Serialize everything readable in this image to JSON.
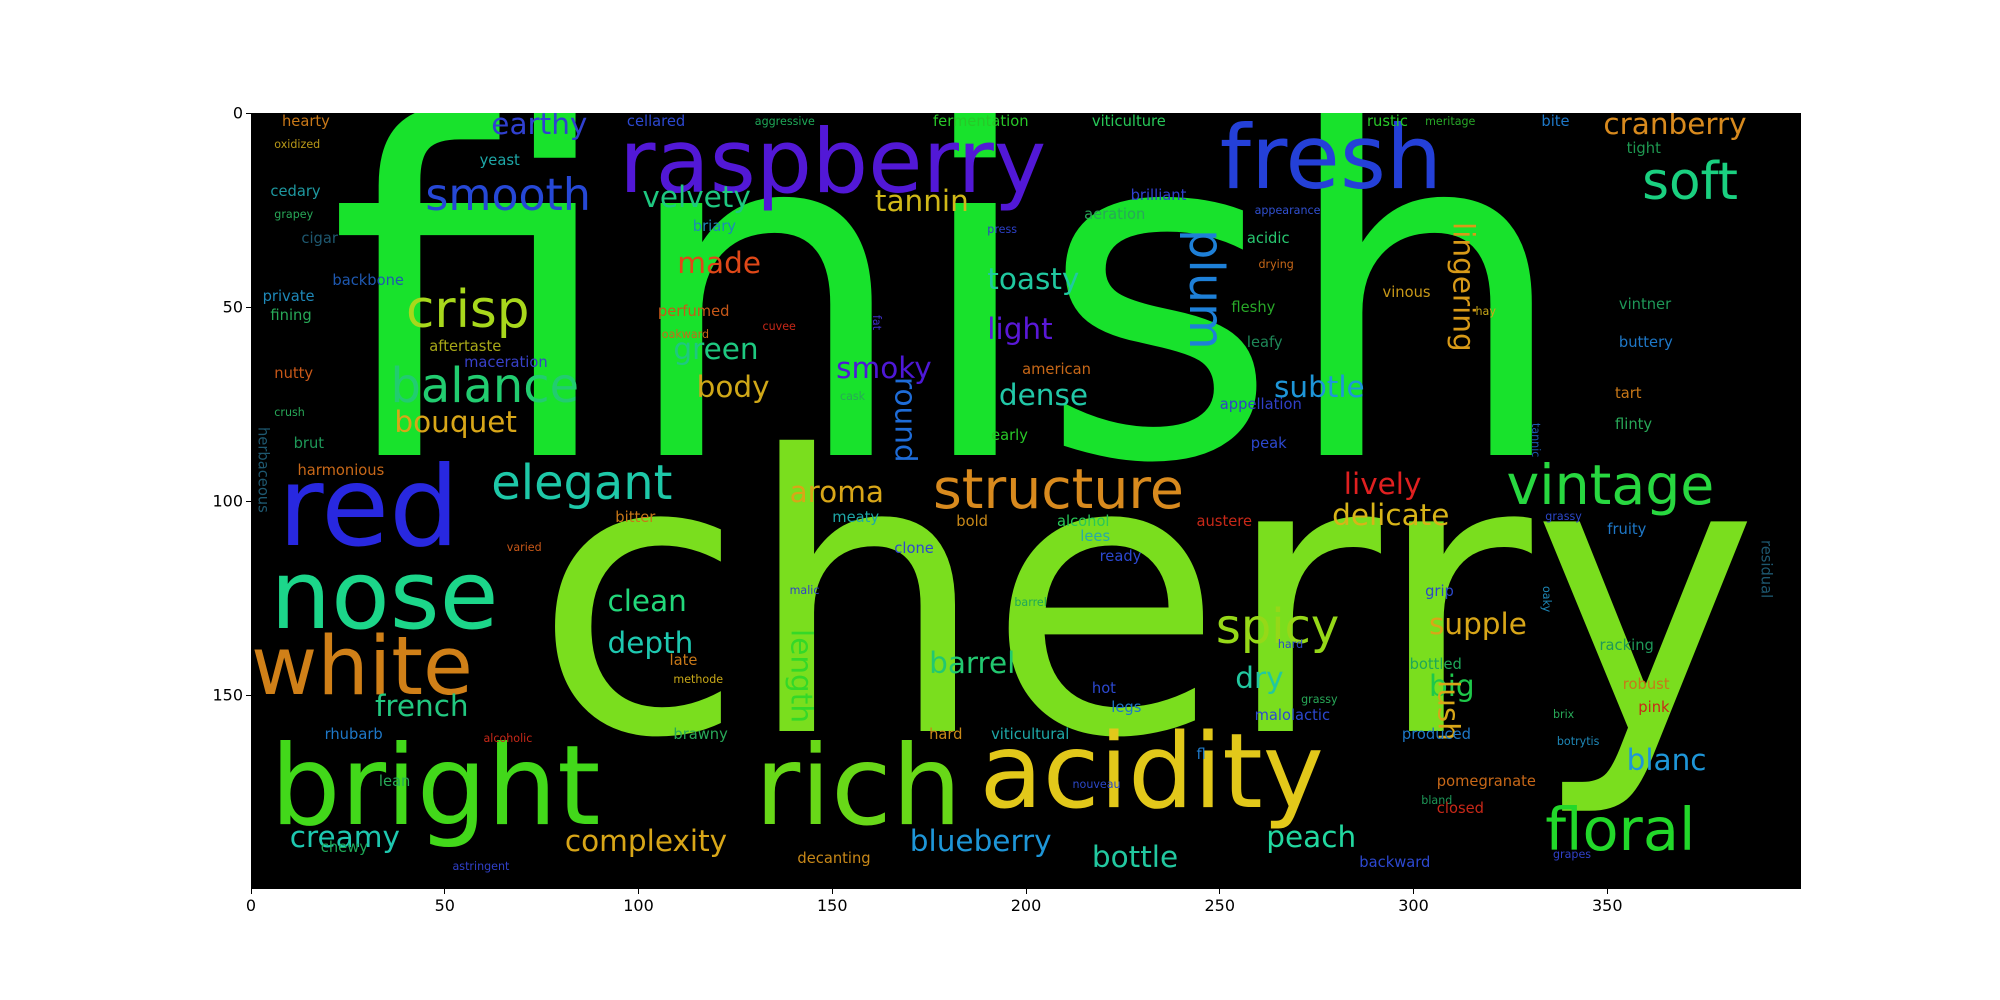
{
  "chart_data": {
    "type": "wordcloud",
    "xlim": [
      0,
      400
    ],
    "ylim": [
      200,
      0
    ],
    "x_ticks": [
      0,
      50,
      100,
      150,
      200,
      250,
      300,
      350
    ],
    "y_ticks": [
      0,
      50,
      100,
      150
    ],
    "x_tick_labels": [
      "0",
      "50",
      "100",
      "150",
      "200",
      "250",
      "300",
      "350"
    ],
    "y_tick_labels": [
      "0",
      "50",
      "100",
      "150"
    ],
    "background": "#000000",
    "words": [
      {
        "text": "finish",
        "x": 20,
        "y": 2,
        "size": 125,
        "color": "#18e22c"
      },
      {
        "text": "cherry",
        "x": 73,
        "y": 88,
        "size": 104,
        "color": "#7ade1e"
      },
      {
        "text": "raspberry",
        "x": 95,
        "y": 4,
        "size": 24,
        "color": "#5218d6"
      },
      {
        "text": "fresh",
        "x": 250,
        "y": 3,
        "size": 24,
        "color": "#2440d8"
      },
      {
        "text": "red",
        "x": 7,
        "y": 91,
        "size": 30,
        "color": "#2828e0"
      },
      {
        "text": "nose",
        "x": 5,
        "y": 115,
        "size": 26,
        "color": "#1cd68a"
      },
      {
        "text": "white",
        "x": 0,
        "y": 135,
        "size": 22,
        "color": "#d08018"
      },
      {
        "text": "bright",
        "x": 5,
        "y": 163,
        "size": 30,
        "color": "#42d81a"
      },
      {
        "text": "rich",
        "x": 130,
        "y": 163,
        "size": 30,
        "color": "#68d818"
      },
      {
        "text": "acidity",
        "x": 188,
        "y": 160,
        "size": 28,
        "color": "#e2c81a"
      },
      {
        "text": "floral",
        "x": 334,
        "y": 179,
        "size": 16,
        "color": "#22d82a"
      },
      {
        "text": "vintage",
        "x": 324,
        "y": 91,
        "size": 15,
        "color": "#28d840"
      },
      {
        "text": "structure",
        "x": 176,
        "y": 92,
        "size": 15,
        "color": "#d88a1e"
      },
      {
        "text": "soft",
        "x": 359,
        "y": 13,
        "size": 14,
        "color": "#1ad080"
      },
      {
        "text": "smooth",
        "x": 45,
        "y": 17,
        "size": 12,
        "color": "#2648d6"
      },
      {
        "text": "crisp",
        "x": 40,
        "y": 46,
        "size": 14,
        "color": "#a8d81c"
      },
      {
        "text": "balance",
        "x": 36,
        "y": 66,
        "size": 13,
        "color": "#22cc70"
      },
      {
        "text": "elegant",
        "x": 62,
        "y": 91,
        "size": 13,
        "color": "#1ec8a8"
      },
      {
        "text": "plum",
        "x": 240,
        "y": 30,
        "size": 13,
        "color": "#1e80d8",
        "rotate": 90
      },
      {
        "text": "spicy",
        "x": 249,
        "y": 128,
        "size": 13,
        "color": "#96d818"
      },
      {
        "text": "earthy",
        "x": 62,
        "y": 0,
        "size": 8,
        "color": "#3040d0"
      },
      {
        "text": "cranberry",
        "x": 349,
        "y": 0,
        "size": 8,
        "color": "#d88a1e"
      },
      {
        "text": "velvety",
        "x": 101,
        "y": 19,
        "size": 8,
        "color": "#1ec880"
      },
      {
        "text": "tannin",
        "x": 161,
        "y": 20,
        "size": 8,
        "color": "#d0b818"
      },
      {
        "text": "made",
        "x": 110,
        "y": 36,
        "size": 8,
        "color": "#e04818"
      },
      {
        "text": "toasty",
        "x": 190,
        "y": 40,
        "size": 8,
        "color": "#20c8a0"
      },
      {
        "text": "light",
        "x": 190,
        "y": 53,
        "size": 8,
        "color": "#5a18d8"
      },
      {
        "text": "lingering",
        "x": 309,
        "y": 28,
        "size": 8,
        "color": "#d89a18",
        "rotate": 90
      },
      {
        "text": "green",
        "x": 109,
        "y": 58,
        "size": 8,
        "color": "#1ec880"
      },
      {
        "text": "smoky",
        "x": 151,
        "y": 63,
        "size": 8,
        "color": "#4e18d8"
      },
      {
        "text": "body",
        "x": 115,
        "y": 68,
        "size": 8,
        "color": "#d0a818"
      },
      {
        "text": "dense",
        "x": 193,
        "y": 70,
        "size": 8,
        "color": "#22c8a8"
      },
      {
        "text": "subtle",
        "x": 264,
        "y": 68,
        "size": 8,
        "color": "#1e96d8"
      },
      {
        "text": "bouquet",
        "x": 37,
        "y": 77,
        "size": 8,
        "color": "#d8a618"
      },
      {
        "text": "round",
        "x": 165,
        "y": 68,
        "size": 8,
        "color": "#1e6cd8",
        "rotate": 90
      },
      {
        "text": "aroma",
        "x": 139,
        "y": 95,
        "size": 8,
        "color": "#d8a618"
      },
      {
        "text": "lively",
        "x": 282,
        "y": 93,
        "size": 8,
        "color": "#e02020"
      },
      {
        "text": "delicate",
        "x": 279,
        "y": 101,
        "size": 8,
        "color": "#d8b418"
      },
      {
        "text": "clean",
        "x": 92,
        "y": 123,
        "size": 8,
        "color": "#22d87a"
      },
      {
        "text": "depth",
        "x": 92,
        "y": 134,
        "size": 8,
        "color": "#1ec8b0"
      },
      {
        "text": "supple",
        "x": 304,
        "y": 129,
        "size": 8,
        "color": "#d8a618"
      },
      {
        "text": "barrel",
        "x": 175,
        "y": 139,
        "size": 8,
        "color": "#22c870"
      },
      {
        "text": "dry",
        "x": 254,
        "y": 143,
        "size": 8,
        "color": "#22c8a0"
      },
      {
        "text": "big",
        "x": 304,
        "y": 145,
        "size": 8,
        "color": "#1ec84a"
      },
      {
        "text": "french",
        "x": 32,
        "y": 150,
        "size": 8,
        "color": "#22c880"
      },
      {
        "text": "length",
        "x": 138,
        "y": 133,
        "size": 8,
        "color": "#34d828",
        "rotate": 90
      },
      {
        "text": "lush",
        "x": 305,
        "y": 146,
        "size": 8,
        "color": "#d8a618",
        "rotate": 90
      },
      {
        "text": "blanc",
        "x": 355,
        "y": 164,
        "size": 8,
        "color": "#1e96d8"
      },
      {
        "text": "creamy",
        "x": 10,
        "y": 184,
        "size": 8,
        "color": "#1ec8b0"
      },
      {
        "text": "complexity",
        "x": 81,
        "y": 185,
        "size": 8,
        "color": "#d8a618"
      },
      {
        "text": "blueberry",
        "x": 170,
        "y": 185,
        "size": 8,
        "color": "#1e96d8"
      },
      {
        "text": "peach",
        "x": 262,
        "y": 184,
        "size": 8,
        "color": "#22d8a0"
      },
      {
        "text": "bottle",
        "x": 217,
        "y": 189,
        "size": 8,
        "color": "#22c8a0"
      },
      {
        "text": "hearty",
        "x": 8,
        "y": 1,
        "size": 4,
        "color": "#c87818"
      },
      {
        "text": "cellared",
        "x": 97,
        "y": 1,
        "size": 4,
        "color": "#2c48d0"
      },
      {
        "text": "aggressive",
        "x": 130,
        "y": 1,
        "size": 3,
        "color": "#1ea858"
      },
      {
        "text": "fermentation",
        "x": 176,
        "y": 1,
        "size": 4,
        "color": "#28c828"
      },
      {
        "text": "viticulture",
        "x": 217,
        "y": 1,
        "size": 4,
        "color": "#28c858"
      },
      {
        "text": "rustic",
        "x": 288,
        "y": 1,
        "size": 4,
        "color": "#28c828"
      },
      {
        "text": "meritage",
        "x": 303,
        "y": 1,
        "size": 3,
        "color": "#28a828"
      },
      {
        "text": "bite",
        "x": 333,
        "y": 1,
        "size": 4,
        "color": "#1e78c8"
      },
      {
        "text": "oxidized",
        "x": 6,
        "y": 7,
        "size": 3,
        "color": "#b89818"
      },
      {
        "text": "yeast",
        "x": 59,
        "y": 11,
        "size": 4,
        "color": "#1ea8a8"
      },
      {
        "text": "tight",
        "x": 355,
        "y": 8,
        "size": 4,
        "color": "#1e9850"
      },
      {
        "text": "cedary",
        "x": 5,
        "y": 19,
        "size": 4,
        "color": "#1e98a0"
      },
      {
        "text": "brilliant",
        "x": 227,
        "y": 20,
        "size": 4,
        "color": "#3040d0"
      },
      {
        "text": "grapey",
        "x": 6,
        "y": 25,
        "size": 3,
        "color": "#28a858"
      },
      {
        "text": "appearance",
        "x": 259,
        "y": 24,
        "size": 3,
        "color": "#3050d0"
      },
      {
        "text": "briary",
        "x": 114,
        "y": 28,
        "size": 4,
        "color": "#1e88b8"
      },
      {
        "text": "press",
        "x": 190,
        "y": 29,
        "size": 3,
        "color": "#2c40c8"
      },
      {
        "text": "aeration",
        "x": 215,
        "y": 25,
        "size": 4,
        "color": "#28a858"
      },
      {
        "text": "cigar",
        "x": 13,
        "y": 31,
        "size": 4,
        "color": "#1e5870"
      },
      {
        "text": "acidic",
        "x": 257,
        "y": 31,
        "size": 4,
        "color": "#28c870"
      },
      {
        "text": "drying",
        "x": 260,
        "y": 38,
        "size": 3,
        "color": "#c86818"
      },
      {
        "text": "backbone",
        "x": 21,
        "y": 42,
        "size": 4,
        "color": "#1e58b0"
      },
      {
        "text": "private",
        "x": 3,
        "y": 46,
        "size": 4,
        "color": "#1e88b8"
      },
      {
        "text": "vinous",
        "x": 292,
        "y": 45,
        "size": 4,
        "color": "#c89818"
      },
      {
        "text": "fining",
        "x": 5,
        "y": 51,
        "size": 4,
        "color": "#28a858"
      },
      {
        "text": "perfumed",
        "x": 105,
        "y": 50,
        "size": 4,
        "color": "#c85818"
      },
      {
        "text": "fat",
        "x": 160,
        "y": 52,
        "size": 3,
        "color": "#4030c8",
        "rotate": 90
      },
      {
        "text": "hay",
        "x": 316,
        "y": 50,
        "size": 3,
        "color": "#c8a818"
      },
      {
        "text": "vintner",
        "x": 353,
        "y": 48,
        "size": 4,
        "color": "#1e9858"
      },
      {
        "text": "oakward",
        "x": 106,
        "y": 56,
        "size": 3,
        "color": "#c86818"
      },
      {
        "text": "cuvee",
        "x": 132,
        "y": 54,
        "size": 3,
        "color": "#c82818"
      },
      {
        "text": "fleshy",
        "x": 253,
        "y": 49,
        "size": 4,
        "color": "#28a828"
      },
      {
        "text": "aftertaste",
        "x": 46,
        "y": 59,
        "size": 4,
        "color": "#a8a818"
      },
      {
        "text": "leafy",
        "x": 257,
        "y": 58,
        "size": 4,
        "color": "#1e8858"
      },
      {
        "text": "maceration",
        "x": 55,
        "y": 63,
        "size": 4,
        "color": "#3840c8"
      },
      {
        "text": "buttery",
        "x": 353,
        "y": 58,
        "size": 4,
        "color": "#1e78c8"
      },
      {
        "text": "nutty",
        "x": 6,
        "y": 66,
        "size": 4,
        "color": "#c85818"
      },
      {
        "text": "american",
        "x": 199,
        "y": 65,
        "size": 4,
        "color": "#c86818"
      },
      {
        "text": "tart",
        "x": 352,
        "y": 71,
        "size": 4,
        "color": "#c87818"
      },
      {
        "text": "crush",
        "x": 6,
        "y": 76,
        "size": 3,
        "color": "#28a858"
      },
      {
        "text": "cask",
        "x": 152,
        "y": 72,
        "size": 3,
        "color": "#28a858"
      },
      {
        "text": "appellation",
        "x": 250,
        "y": 74,
        "size": 4,
        "color": "#3040c8"
      },
      {
        "text": "flinty",
        "x": 352,
        "y": 79,
        "size": 4,
        "color": "#28a858"
      },
      {
        "text": "herbaceous",
        "x": 1,
        "y": 81,
        "size": 4,
        "color": "#1e5870",
        "rotate": 90
      },
      {
        "text": "brut",
        "x": 11,
        "y": 84,
        "size": 4,
        "color": "#1e9858"
      },
      {
        "text": "early",
        "x": 191,
        "y": 82,
        "size": 4,
        "color": "#28c828"
      },
      {
        "text": "peak",
        "x": 258,
        "y": 84,
        "size": 4,
        "color": "#2c48d0"
      },
      {
        "text": "tannic",
        "x": 330,
        "y": 80,
        "size": 3,
        "color": "#1e58b0",
        "rotate": 90
      },
      {
        "text": "harmonious",
        "x": 12,
        "y": 91,
        "size": 4,
        "color": "#c86818"
      },
      {
        "text": "bitter",
        "x": 94,
        "y": 103,
        "size": 4,
        "color": "#c87818"
      },
      {
        "text": "meaty",
        "x": 150,
        "y": 103,
        "size": 4,
        "color": "#1ea8a8"
      },
      {
        "text": "bold",
        "x": 182,
        "y": 104,
        "size": 4,
        "color": "#c88818"
      },
      {
        "text": "alcohol",
        "x": 208,
        "y": 104,
        "size": 4,
        "color": "#28c858"
      },
      {
        "text": "austere",
        "x": 244,
        "y": 104,
        "size": 4,
        "color": "#c82818"
      },
      {
        "text": "grassy",
        "x": 334,
        "y": 103,
        "size": 3,
        "color": "#2c48c8"
      },
      {
        "text": "fruity",
        "x": 350,
        "y": 106,
        "size": 4,
        "color": "#1e78c8"
      },
      {
        "text": "lees",
        "x": 214,
        "y": 108,
        "size": 4,
        "color": "#28a8a8"
      },
      {
        "text": "varied",
        "x": 66,
        "y": 111,
        "size": 3,
        "color": "#c85818"
      },
      {
        "text": "clone",
        "x": 166,
        "y": 111,
        "size": 4,
        "color": "#2c48d0"
      },
      {
        "text": "ready",
        "x": 219,
        "y": 113,
        "size": 4,
        "color": "#2c48d0"
      },
      {
        "text": "residual",
        "x": 389,
        "y": 110,
        "size": 4,
        "color": "#1e5870",
        "rotate": 90
      },
      {
        "text": "malic",
        "x": 139,
        "y": 122,
        "size": 3,
        "color": "#3040c8"
      },
      {
        "text": "grip",
        "x": 303,
        "y": 122,
        "size": 4,
        "color": "#2c48c8"
      },
      {
        "text": "barrel",
        "x": 197,
        "y": 125,
        "size": 3,
        "color": "#1ea858"
      },
      {
        "text": "oaky",
        "x": 333,
        "y": 122,
        "size": 3,
        "color": "#1e88b8",
        "rotate": 90
      },
      {
        "text": "racking",
        "x": 348,
        "y": 136,
        "size": 4,
        "color": "#1e9858"
      },
      {
        "text": "late",
        "x": 108,
        "y": 140,
        "size": 4,
        "color": "#c87818"
      },
      {
        "text": "bottled",
        "x": 299,
        "y": 141,
        "size": 4,
        "color": "#1ea858"
      },
      {
        "text": "hard",
        "x": 265,
        "y": 136,
        "size": 3,
        "color": "#2c48c8"
      },
      {
        "text": "methode",
        "x": 109,
        "y": 145,
        "size": 3,
        "color": "#c8a818"
      },
      {
        "text": "robust",
        "x": 354,
        "y": 146,
        "size": 4,
        "color": "#c87818"
      },
      {
        "text": "hot",
        "x": 217,
        "y": 147,
        "size": 4,
        "color": "#2c48d0"
      },
      {
        "text": "grassy",
        "x": 271,
        "y": 150,
        "size": 3,
        "color": "#28a858"
      },
      {
        "text": "pink",
        "x": 358,
        "y": 152,
        "size": 4,
        "color": "#c82818"
      },
      {
        "text": "legs",
        "x": 222,
        "y": 152,
        "size": 4,
        "color": "#1e78c8"
      },
      {
        "text": "malolactic",
        "x": 259,
        "y": 154,
        "size": 4,
        "color": "#2c48d0"
      },
      {
        "text": "brix",
        "x": 336,
        "y": 154,
        "size": 3,
        "color": "#28a858"
      },
      {
        "text": "rhubarb",
        "x": 19,
        "y": 159,
        "size": 4,
        "color": "#1e78c8"
      },
      {
        "text": "alcoholic",
        "x": 60,
        "y": 160,
        "size": 3,
        "color": "#c82818"
      },
      {
        "text": "brawny",
        "x": 109,
        "y": 159,
        "size": 4,
        "color": "#28a858"
      },
      {
        "text": "hard",
        "x": 175,
        "y": 159,
        "size": 4,
        "color": "#c88818"
      },
      {
        "text": "viticultural",
        "x": 191,
        "y": 159,
        "size": 4,
        "color": "#1ea8a8"
      },
      {
        "text": "produced",
        "x": 297,
        "y": 159,
        "size": 4,
        "color": "#1e78c8"
      },
      {
        "text": "botrytis",
        "x": 337,
        "y": 161,
        "size": 3,
        "color": "#1e88b8"
      },
      {
        "text": "fl",
        "x": 244,
        "y": 164,
        "size": 4,
        "color": "#1e78c8"
      },
      {
        "text": "lean",
        "x": 33,
        "y": 171,
        "size": 4,
        "color": "#28a858"
      },
      {
        "text": "nouveau",
        "x": 212,
        "y": 172,
        "size": 3,
        "color": "#2c48c8"
      },
      {
        "text": "pomegranate",
        "x": 306,
        "y": 171,
        "size": 4,
        "color": "#c86818"
      },
      {
        "text": "bland",
        "x": 302,
        "y": 176,
        "size": 3,
        "color": "#1e9858"
      },
      {
        "text": "closed",
        "x": 306,
        "y": 178,
        "size": 4,
        "color": "#c82818"
      },
      {
        "text": "chewy",
        "x": 18,
        "y": 188,
        "size": 4,
        "color": "#1ea858"
      },
      {
        "text": "decanting",
        "x": 141,
        "y": 191,
        "size": 4,
        "color": "#c88818"
      },
      {
        "text": "astringent",
        "x": 52,
        "y": 193,
        "size": 3,
        "color": "#3040c8"
      },
      {
        "text": "backward",
        "x": 286,
        "y": 192,
        "size": 4,
        "color": "#2c48d0"
      },
      {
        "text": "grapes",
        "x": 336,
        "y": 190,
        "size": 3,
        "color": "#3040c8"
      }
    ]
  }
}
